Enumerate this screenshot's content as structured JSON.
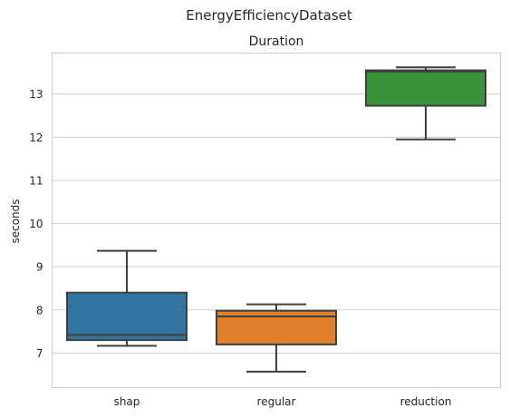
{
  "chart_data": {
    "type": "box",
    "suptitle": "EnergyEfficiencyDataset",
    "title": "Duration",
    "xlabel": "",
    "ylabel": "seconds",
    "ylim": [
      6.2,
      13.95
    ],
    "yticks": [
      7,
      8,
      9,
      10,
      11,
      12,
      13
    ],
    "grid": "horizontal",
    "categories": [
      "shap",
      "regular",
      "reduction"
    ],
    "boxes": [
      {
        "name": "shap",
        "min": 7.17,
        "q1": 7.3,
        "median": 7.42,
        "q3": 8.4,
        "max": 9.37,
        "color": "#3274a1"
      },
      {
        "name": "regular",
        "min": 6.57,
        "q1": 7.2,
        "median": 7.85,
        "q3": 7.98,
        "max": 8.13,
        "color": "#e1812c"
      },
      {
        "name": "reduction",
        "min": 11.95,
        "q1": 12.73,
        "median": 13.52,
        "q3": 13.55,
        "max": 13.62,
        "color": "#3a923a"
      }
    ]
  }
}
